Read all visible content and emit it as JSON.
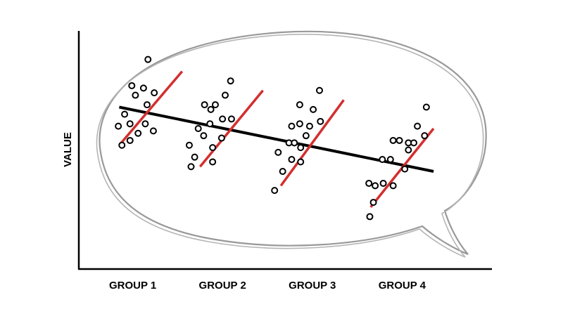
{
  "chart_data": {
    "type": "scatter",
    "title": "",
    "xlabel": "",
    "ylabel": "VALUE",
    "categories": [
      "GROUP 1",
      "GROUP 2",
      "GROUP 3",
      "GROUP 4"
    ],
    "xlim": [
      0.4,
      5.0
    ],
    "ylim": [
      0,
      10
    ],
    "grid": false,
    "legend": "none",
    "colors": {
      "points": "#000000",
      "group_trend": "#d32f2f",
      "overall_trend": "#000000",
      "bubble": "#999999",
      "axis": "#000000"
    },
    "overall_trend": {
      "x": [
        0.85,
        4.35
      ],
      "y": [
        6.8,
        4.1
      ]
    },
    "group_trends": [
      {
        "group": "GROUP 1",
        "x": [
          0.85,
          1.55
        ],
        "y": [
          5.2,
          8.3
        ]
      },
      {
        "group": "GROUP 2",
        "x": [
          1.75,
          2.45
        ],
        "y": [
          4.3,
          7.5
        ]
      },
      {
        "group": "GROUP 3",
        "x": [
          2.65,
          3.35
        ],
        "y": [
          3.5,
          7.1
        ]
      },
      {
        "group": "GROUP 4",
        "x": [
          3.65,
          4.35
        ],
        "y": [
          2.6,
          5.9
        ]
      }
    ],
    "series": [
      {
        "group": "GROUP 1",
        "points": [
          {
            "x": 1.17,
            "y": 8.8
          },
          {
            "x": 0.99,
            "y": 7.7
          },
          {
            "x": 1.03,
            "y": 7.3
          },
          {
            "x": 1.12,
            "y": 7.6
          },
          {
            "x": 1.24,
            "y": 7.4
          },
          {
            "x": 1.16,
            "y": 6.9
          },
          {
            "x": 0.91,
            "y": 6.5
          },
          {
            "x": 0.84,
            "y": 6.0
          },
          {
            "x": 1.14,
            "y": 6.1
          },
          {
            "x": 1.23,
            "y": 5.8
          },
          {
            "x": 0.97,
            "y": 5.4
          },
          {
            "x": 0.88,
            "y": 5.2
          },
          {
            "x": 1.06,
            "y": 5.7
          },
          {
            "x": 0.97,
            "y": 6.1
          }
        ]
      },
      {
        "group": "GROUP 2",
        "points": [
          {
            "x": 2.09,
            "y": 7.9
          },
          {
            "x": 2.03,
            "y": 7.3
          },
          {
            "x": 1.92,
            "y": 6.9
          },
          {
            "x": 1.8,
            "y": 6.9
          },
          {
            "x": 1.87,
            "y": 6.7
          },
          {
            "x": 2.0,
            "y": 6.3
          },
          {
            "x": 2.1,
            "y": 6.3
          },
          {
            "x": 1.86,
            "y": 6.1
          },
          {
            "x": 1.73,
            "y": 5.9
          },
          {
            "x": 1.79,
            "y": 5.6
          },
          {
            "x": 1.99,
            "y": 5.5
          },
          {
            "x": 1.63,
            "y": 5.2
          },
          {
            "x": 1.89,
            "y": 5.1
          },
          {
            "x": 1.69,
            "y": 4.7
          },
          {
            "x": 1.89,
            "y": 4.5
          },
          {
            "x": 1.65,
            "y": 4.3
          }
        ]
      },
      {
        "group": "GROUP 3",
        "points": [
          {
            "x": 3.08,
            "y": 7.5
          },
          {
            "x": 2.86,
            "y": 6.9
          },
          {
            "x": 3.01,
            "y": 6.7
          },
          {
            "x": 3.09,
            "y": 6.2
          },
          {
            "x": 2.86,
            "y": 6.1
          },
          {
            "x": 2.97,
            "y": 6.0
          },
          {
            "x": 2.77,
            "y": 6.0
          },
          {
            "x": 2.93,
            "y": 5.6
          },
          {
            "x": 2.74,
            "y": 5.3
          },
          {
            "x": 2.87,
            "y": 5.1
          },
          {
            "x": 2.62,
            "y": 4.9
          },
          {
            "x": 2.77,
            "y": 4.6
          },
          {
            "x": 2.87,
            "y": 4.5
          },
          {
            "x": 2.67,
            "y": 4.1
          },
          {
            "x": 2.58,
            "y": 3.3
          },
          {
            "x": 2.8,
            "y": 5.3
          }
        ]
      },
      {
        "group": "GROUP 4",
        "points": [
          {
            "x": 4.27,
            "y": 6.8
          },
          {
            "x": 4.17,
            "y": 6.0
          },
          {
            "x": 4.25,
            "y": 5.6
          },
          {
            "x": 4.07,
            "y": 5.3
          },
          {
            "x": 3.97,
            "y": 5.4
          },
          {
            "x": 3.9,
            "y": 5.4
          },
          {
            "x": 4.13,
            "y": 5.3
          },
          {
            "x": 4.07,
            "y": 5.0
          },
          {
            "x": 3.78,
            "y": 4.6
          },
          {
            "x": 3.87,
            "y": 4.6
          },
          {
            "x": 4.03,
            "y": 4.2
          },
          {
            "x": 3.63,
            "y": 3.6
          },
          {
            "x": 3.79,
            "y": 3.6
          },
          {
            "x": 3.9,
            "y": 3.5
          },
          {
            "x": 3.7,
            "y": 3.5
          },
          {
            "x": 3.68,
            "y": 2.8
          },
          {
            "x": 3.64,
            "y": 2.2
          }
        ]
      }
    ]
  }
}
